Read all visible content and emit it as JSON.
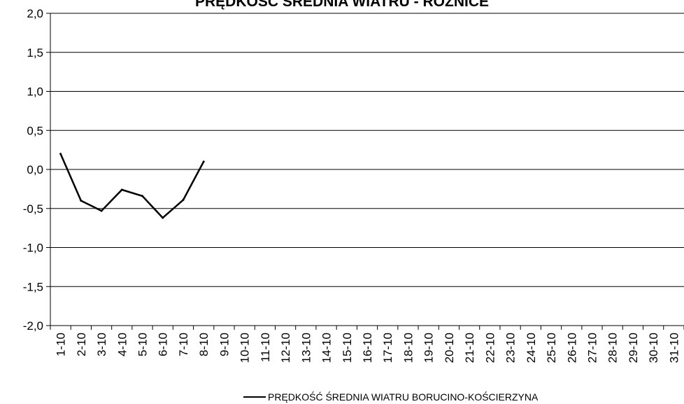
{
  "chart_data": {
    "type": "line",
    "title": "PRĘDKOŚĆ ŚREDNIA WIATRU - RÓŻNICE",
    "xlabel": "",
    "ylabel": "",
    "ylim": [
      -2.0,
      2.0
    ],
    "y_ticks": [
      "2,0",
      "1,5",
      "1,0",
      "0,5",
      "0,0",
      "-0,5",
      "-1,0",
      "-1,5",
      "-2,0"
    ],
    "categories": [
      "1-10",
      "2-10",
      "3-10",
      "4-10",
      "5-10",
      "6-10",
      "7-10",
      "8-10",
      "9-10",
      "10-10",
      "11-10",
      "12-10",
      "13-10",
      "14-10",
      "15-10",
      "16-10",
      "17-10",
      "18-10",
      "19-10",
      "20-10",
      "21-10",
      "22-10",
      "23-10",
      "24-10",
      "25-10",
      "26-10",
      "27-10",
      "28-10",
      "29-10",
      "30-10",
      "31-10"
    ],
    "series": [
      {
        "name": "PRĘDKOŚĆ ŚREDNIA WIATRU BORUCINO-KOŚCIERZYNA",
        "color": "#000000",
        "values": [
          0.2,
          -0.4,
          -0.53,
          -0.26,
          -0.34,
          -0.62,
          -0.39,
          0.1,
          null,
          null,
          null,
          null,
          null,
          null,
          null,
          null,
          null,
          null,
          null,
          null,
          null,
          null,
          null,
          null,
          null,
          null,
          null,
          null,
          null,
          null,
          null
        ]
      }
    ],
    "grid": true,
    "legend_position": "bottom"
  }
}
